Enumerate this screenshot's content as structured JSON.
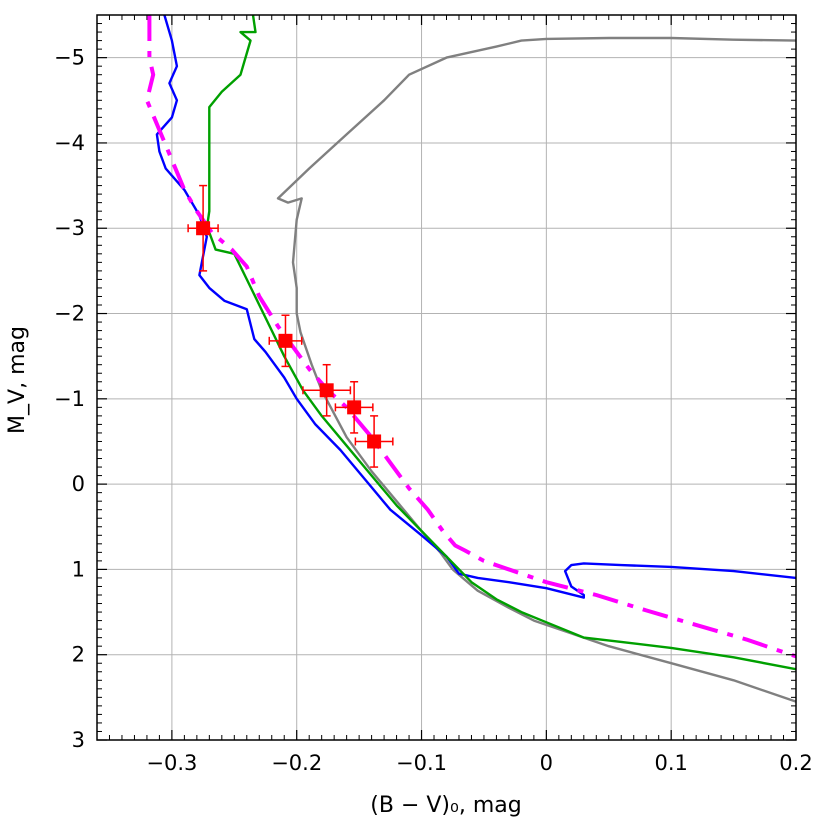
{
  "chart_data": {
    "type": "scatter",
    "xlabel": "(B − V)₀, mag",
    "ylabel": "M_V, mag",
    "xlim": [
      -0.36,
      0.2
    ],
    "ylim": [
      3,
      -5.5
    ],
    "y_inverted": true,
    "grid": true,
    "x_ticks": [
      -0.3,
      -0.2,
      -0.1,
      0,
      0.1,
      0.2
    ],
    "x_tick_labels": [
      "−0.3",
      "−0.2",
      "−0.1",
      "0",
      "0.1",
      "0.2"
    ],
    "y_ticks": [
      -5,
      -4,
      -3,
      -2,
      -1,
      0,
      1,
      2,
      3
    ],
    "y_tick_labels": [
      "−5",
      "−4",
      "−3",
      "−2",
      "−1",
      "0",
      "1",
      "2",
      "3"
    ],
    "points": {
      "color": "#ff0000",
      "values": [
        {
          "x": -0.275,
          "y": -3.0,
          "xerr": 0.012,
          "yerr": 0.5
        },
        {
          "x": -0.209,
          "y": -1.68,
          "xerr": 0.013,
          "yerr": 0.3
        },
        {
          "x": -0.176,
          "y": -1.1,
          "xerr": 0.019,
          "yerr": 0.3
        },
        {
          "x": -0.154,
          "y": -0.9,
          "xerr": 0.015,
          "yerr": 0.3
        },
        {
          "x": -0.138,
          "y": -0.5,
          "xerr": 0.015,
          "yerr": 0.3
        }
      ]
    },
    "series": [
      {
        "color": "#808080",
        "style": "solid",
        "points": [
          [
            -0.075,
            1.0
          ],
          [
            -0.085,
            0.8
          ],
          [
            -0.1,
            0.55
          ],
          [
            -0.12,
            0.2
          ],
          [
            -0.14,
            -0.15
          ],
          [
            -0.16,
            -0.55
          ],
          [
            -0.18,
            -1.1
          ],
          [
            -0.188,
            -1.4
          ],
          [
            -0.197,
            -1.78
          ],
          [
            -0.2,
            -2.0
          ],
          [
            -0.2,
            -2.3
          ],
          [
            -0.203,
            -2.6
          ],
          [
            -0.2,
            -3.1
          ],
          [
            -0.196,
            -3.35
          ],
          [
            -0.207,
            -3.3
          ],
          [
            -0.215,
            -3.35
          ],
          [
            -0.19,
            -3.7
          ],
          [
            -0.16,
            -4.1
          ],
          [
            -0.13,
            -4.5
          ],
          [
            -0.11,
            -4.8
          ],
          [
            -0.08,
            -5.0
          ],
          [
            -0.04,
            -5.13
          ],
          [
            -0.02,
            -5.2
          ],
          [
            0.0,
            -5.22
          ],
          [
            0.05,
            -5.23
          ],
          [
            0.1,
            -5.23
          ],
          [
            0.15,
            -5.21
          ],
          [
            0.2,
            -5.2
          ]
        ]
      },
      {
        "color": "#808080",
        "style": "solid",
        "points": [
          [
            -0.075,
            1.0
          ],
          [
            -0.055,
            1.25
          ],
          [
            -0.03,
            1.45
          ],
          [
            -0.01,
            1.6
          ],
          [
            0.02,
            1.75
          ],
          [
            0.05,
            1.9
          ],
          [
            0.1,
            2.1
          ],
          [
            0.15,
            2.3
          ],
          [
            0.2,
            2.55
          ]
        ]
      },
      {
        "color": "#0000ff",
        "style": "solid",
        "points": [
          [
            -0.306,
            -5.5
          ],
          [
            -0.3,
            -5.2
          ],
          [
            -0.296,
            -4.9
          ],
          [
            -0.302,
            -4.7
          ],
          [
            -0.296,
            -4.5
          ],
          [
            -0.3,
            -4.3
          ],
          [
            -0.312,
            -4.1
          ],
          [
            -0.31,
            -3.9
          ],
          [
            -0.305,
            -3.7
          ],
          [
            -0.29,
            -3.45
          ],
          [
            -0.278,
            -3.15
          ],
          [
            -0.272,
            -2.9
          ],
          [
            -0.278,
            -2.45
          ],
          [
            -0.27,
            -2.3
          ],
          [
            -0.258,
            -2.15
          ],
          [
            -0.24,
            -2.05
          ],
          [
            -0.234,
            -1.7
          ],
          [
            -0.225,
            -1.55
          ],
          [
            -0.21,
            -1.25
          ],
          [
            -0.2,
            -1.0
          ],
          [
            -0.185,
            -0.7
          ],
          [
            -0.165,
            -0.4
          ],
          [
            -0.145,
            -0.05
          ],
          [
            -0.125,
            0.3
          ],
          [
            -0.1,
            0.6
          ],
          [
            -0.08,
            0.85
          ],
          [
            -0.07,
            1.05
          ],
          [
            -0.055,
            1.1
          ],
          [
            -0.03,
            1.15
          ],
          [
            0.0,
            1.22
          ],
          [
            0.03,
            1.33
          ],
          [
            0.03,
            1.3
          ],
          [
            0.02,
            1.2
          ],
          [
            0.015,
            1.02
          ],
          [
            0.02,
            0.95
          ],
          [
            0.03,
            0.93
          ],
          [
            0.06,
            0.95
          ],
          [
            0.1,
            0.97
          ],
          [
            0.15,
            1.02
          ],
          [
            0.2,
            1.1
          ]
        ]
      },
      {
        "color": "#00a000",
        "style": "solid",
        "points": [
          [
            -0.235,
            -5.5
          ],
          [
            -0.233,
            -5.3
          ],
          [
            -0.245,
            -5.3
          ],
          [
            -0.237,
            -5.2
          ],
          [
            -0.245,
            -4.8
          ],
          [
            -0.26,
            -4.6
          ],
          [
            -0.27,
            -4.42
          ],
          [
            -0.27,
            -4.0
          ],
          [
            -0.27,
            -3.2
          ],
          [
            -0.272,
            -3.0
          ],
          [
            -0.27,
            -2.95
          ],
          [
            -0.265,
            -2.75
          ],
          [
            -0.25,
            -2.7
          ],
          [
            -0.24,
            -2.4
          ],
          [
            -0.23,
            -2.1
          ],
          [
            -0.22,
            -1.8
          ],
          [
            -0.21,
            -1.5
          ],
          [
            -0.195,
            -1.1
          ],
          [
            -0.18,
            -0.8
          ],
          [
            -0.16,
            -0.45
          ],
          [
            -0.14,
            -0.1
          ],
          [
            -0.12,
            0.25
          ],
          [
            -0.1,
            0.55
          ],
          [
            -0.08,
            0.85
          ],
          [
            -0.06,
            1.15
          ],
          [
            -0.04,
            1.35
          ],
          [
            -0.02,
            1.5
          ],
          [
            0.0,
            1.62
          ],
          [
            0.03,
            1.8
          ],
          [
            0.06,
            1.85
          ],
          [
            0.1,
            1.92
          ],
          [
            0.15,
            2.03
          ],
          [
            0.2,
            2.17
          ]
        ]
      },
      {
        "color": "#ff00ff",
        "style": "dashdot",
        "points": [
          [
            -0.318,
            -5.5
          ],
          [
            -0.318,
            -5.0
          ],
          [
            -0.315,
            -4.8
          ],
          [
            -0.32,
            -4.5
          ],
          [
            -0.31,
            -4.15
          ],
          [
            -0.3,
            -3.8
          ],
          [
            -0.29,
            -3.45
          ],
          [
            -0.28,
            -3.2
          ],
          [
            -0.268,
            -2.95
          ],
          [
            -0.252,
            -2.75
          ],
          [
            -0.24,
            -2.55
          ],
          [
            -0.23,
            -2.2
          ],
          [
            -0.215,
            -1.85
          ],
          [
            -0.2,
            -1.55
          ],
          [
            -0.19,
            -1.35
          ],
          [
            -0.175,
            -1.1
          ],
          [
            -0.16,
            -0.9
          ],
          [
            -0.14,
            -0.55
          ],
          [
            -0.125,
            -0.25
          ],
          [
            -0.11,
            0.05
          ],
          [
            -0.095,
            0.3
          ],
          [
            -0.083,
            0.55
          ],
          [
            -0.073,
            0.72
          ],
          [
            -0.065,
            0.78
          ],
          [
            -0.05,
            0.9
          ],
          [
            -0.02,
            1.05
          ],
          [
            0.0,
            1.15
          ],
          [
            0.04,
            1.3
          ],
          [
            0.08,
            1.48
          ],
          [
            0.12,
            1.65
          ],
          [
            0.16,
            1.82
          ],
          [
            0.2,
            2.02
          ]
        ]
      }
    ]
  }
}
